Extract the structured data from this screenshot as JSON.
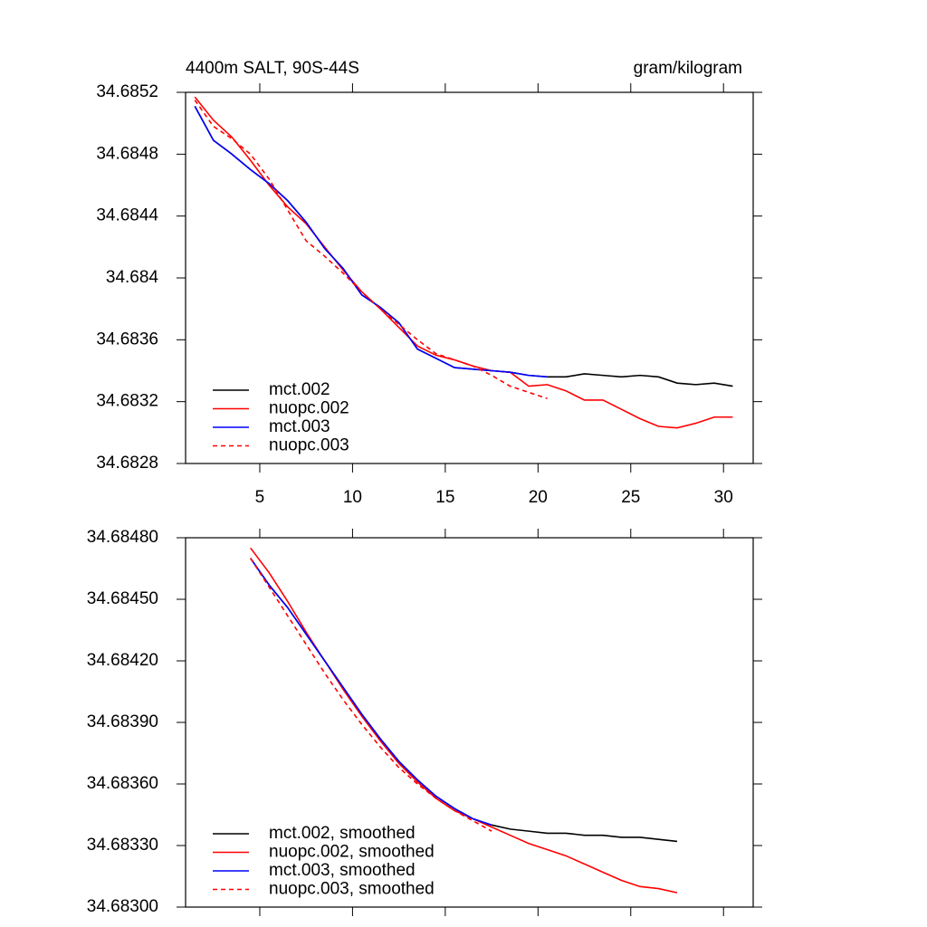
{
  "chart_data": [
    {
      "type": "line",
      "title": "4400m SALT, 90S-44S",
      "subtitle": "gram/kilogram",
      "xlim": [
        1,
        31.6
      ],
      "xticks": [
        5,
        10,
        15,
        20,
        25,
        30
      ],
      "xtick_labels": true,
      "ylim": [
        34.6828,
        34.6852
      ],
      "yticks": [
        34.6828,
        34.6832,
        34.6836,
        34.684,
        34.6844,
        34.6848,
        34.6852
      ],
      "grid": false,
      "legend": "lower-left",
      "series": [
        {
          "name": "mct.002",
          "color": "#000000",
          "dash": false,
          "x": [
            1.5,
            2.5,
            3.5,
            4.5,
            5.5,
            6.5,
            7.5,
            8.5,
            9.5,
            10.5,
            11.5,
            12.5,
            13.5,
            14.5,
            15.5,
            16.5,
            17.5,
            18.5,
            19.5,
            20.5,
            21.5,
            22.5,
            23.5,
            24.5,
            25.5,
            26.5,
            27.5,
            28.5,
            29.5,
            30.5
          ],
          "values": [
            34.68511,
            34.68489,
            34.6848,
            34.6847,
            34.68461,
            34.6845,
            34.68436,
            34.68419,
            34.68406,
            34.68389,
            34.68381,
            34.68371,
            34.68354,
            34.68348,
            34.68342,
            34.68341,
            34.6834,
            34.68339,
            34.68337,
            34.68336,
            34.68336,
            34.68338,
            34.68337,
            34.68336,
            34.68337,
            34.68336,
            34.68332,
            34.68331,
            34.68332,
            34.6833
          ]
        },
        {
          "name": "nuopc.002",
          "color": "#ff0000",
          "dash": false,
          "x": [
            1.5,
            2.5,
            3.5,
            4.5,
            5.5,
            6.5,
            7.5,
            8.5,
            9.5,
            10.5,
            11.5,
            12.5,
            13.5,
            14.5,
            15.5,
            16.5,
            17.5,
            18.5,
            19.5,
            20.5,
            21.5,
            22.5,
            23.5,
            24.5,
            25.5,
            26.5,
            27.5,
            28.5,
            29.5,
            30.5
          ],
          "values": [
            34.68517,
            34.68502,
            34.68491,
            34.68476,
            34.6846,
            34.68446,
            34.68435,
            34.6842,
            34.68405,
            34.68391,
            34.6838,
            34.68368,
            34.68356,
            34.6835,
            34.68347,
            34.68343,
            34.6834,
            34.68339,
            34.6833,
            34.68331,
            34.68327,
            34.68321,
            34.68321,
            34.68315,
            34.68309,
            34.68304,
            34.68303,
            34.68306,
            34.6831,
            34.6831
          ]
        },
        {
          "name": "mct.003",
          "color": "#0000ff",
          "dash": false,
          "x": [
            1.5,
            2.5,
            3.5,
            4.5,
            5.5,
            6.5,
            7.5,
            8.5,
            9.5,
            10.5,
            11.5,
            12.5,
            13.5,
            14.5,
            15.5,
            16.5,
            17.5,
            18.5,
            19.5,
            20.5
          ],
          "values": [
            34.68511,
            34.68489,
            34.6848,
            34.6847,
            34.68461,
            34.6845,
            34.68436,
            34.68419,
            34.68406,
            34.68389,
            34.68381,
            34.68371,
            34.68354,
            34.68348,
            34.68342,
            34.68341,
            34.6834,
            34.68339,
            34.68337,
            34.68336
          ]
        },
        {
          "name": "nuopc.003",
          "color": "#ff0000",
          "dash": true,
          "x": [
            1.5,
            2.5,
            3.5,
            4.5,
            5.5,
            6.5,
            7.5,
            8.5,
            9.5,
            10.5,
            11.5,
            12.5,
            13.5,
            14.5,
            15.5,
            16.5,
            17.5,
            18.5,
            19.5,
            20.5
          ],
          "values": [
            34.68515,
            34.68498,
            34.6849,
            34.6848,
            34.68464,
            34.68444,
            34.68424,
            34.68414,
            34.68403,
            34.68391,
            34.6838,
            34.6837,
            34.6836,
            34.68351,
            34.68347,
            34.68343,
            34.68337,
            34.6833,
            34.68326,
            34.68322
          ]
        }
      ]
    },
    {
      "type": "line",
      "xlim": [
        1,
        31.6
      ],
      "xticks": [
        5,
        10,
        15,
        20,
        25,
        30
      ],
      "xtick_labels": false,
      "ylim": [
        34.683,
        34.6848
      ],
      "yticks": [
        {
          "value": 34.683,
          "label": "34.68300"
        },
        {
          "value": 34.6833,
          "label": "34.68330"
        },
        {
          "value": 34.6836,
          "label": "34.68360"
        },
        {
          "value": 34.6839,
          "label": "34.68390"
        },
        {
          "value": 34.6842,
          "label": "34.68420"
        },
        {
          "value": 34.6845,
          "label": "34.68450"
        },
        {
          "value": 34.6848,
          "label": "34.68480"
        }
      ],
      "grid": false,
      "legend": "lower-left",
      "series": [
        {
          "name": "mct.002, smoothed",
          "color": "#000000",
          "dash": false,
          "x": [
            4.5,
            5.5,
            6.5,
            7.5,
            8.5,
            9.5,
            10.5,
            11.5,
            12.5,
            13.5,
            14.5,
            15.5,
            16.5,
            17.5,
            18.5,
            19.5,
            20.5,
            21.5,
            22.5,
            23.5,
            24.5,
            25.5,
            26.5,
            27.5
          ],
          "values": [
            34.6847,
            34.68457,
            34.68446,
            34.68433,
            34.6842,
            34.68407,
            34.68394,
            34.68382,
            34.68371,
            34.68362,
            34.68354,
            34.68348,
            34.68343,
            34.6834,
            34.68338,
            34.68337,
            34.68336,
            34.68336,
            34.68335,
            34.68335,
            34.68334,
            34.68334,
            34.68333,
            34.68332
          ]
        },
        {
          "name": "nuopc.002, smoothed",
          "color": "#ff0000",
          "dash": false,
          "x": [
            4.5,
            5.5,
            6.5,
            7.5,
            8.5,
            9.5,
            10.5,
            11.5,
            12.5,
            13.5,
            14.5,
            15.5,
            16.5,
            17.5,
            18.5,
            19.5,
            20.5,
            21.5,
            22.5,
            23.5,
            24.5,
            25.5,
            26.5,
            27.5
          ],
          "values": [
            34.68475,
            34.68463,
            34.68449,
            34.68434,
            34.6842,
            34.68406,
            34.68393,
            34.68381,
            34.6837,
            34.68361,
            34.68353,
            34.68347,
            34.68343,
            34.68339,
            34.68335,
            34.68331,
            34.68328,
            34.68325,
            34.68321,
            34.68317,
            34.68313,
            34.6831,
            34.68309,
            34.68307
          ]
        },
        {
          "name": "mct.003, smoothed",
          "color": "#0000ff",
          "dash": false,
          "x": [
            4.5,
            5.5,
            6.5,
            7.5,
            8.5,
            9.5,
            10.5,
            11.5,
            12.5,
            13.5,
            14.5,
            15.5,
            16.5,
            17.5
          ],
          "values": [
            34.6847,
            34.68457,
            34.68446,
            34.68433,
            34.6842,
            34.68407,
            34.68394,
            34.68382,
            34.68371,
            34.68362,
            34.68354,
            34.68348,
            34.68343,
            34.6834
          ]
        },
        {
          "name": "nuopc.003, smoothed",
          "color": "#ff0000",
          "dash": true,
          "x": [
            4.5,
            5.5,
            6.5,
            7.5,
            8.5,
            9.5,
            10.5,
            11.5,
            12.5,
            13.5,
            14.5,
            15.5,
            16.5,
            17.5
          ],
          "values": [
            34.6847,
            34.68456,
            34.68442,
            34.68428,
            34.68414,
            34.68401,
            34.68389,
            34.68378,
            34.68368,
            34.6836,
            34.68353,
            34.68347,
            34.68342,
            34.68337
          ]
        }
      ]
    }
  ]
}
